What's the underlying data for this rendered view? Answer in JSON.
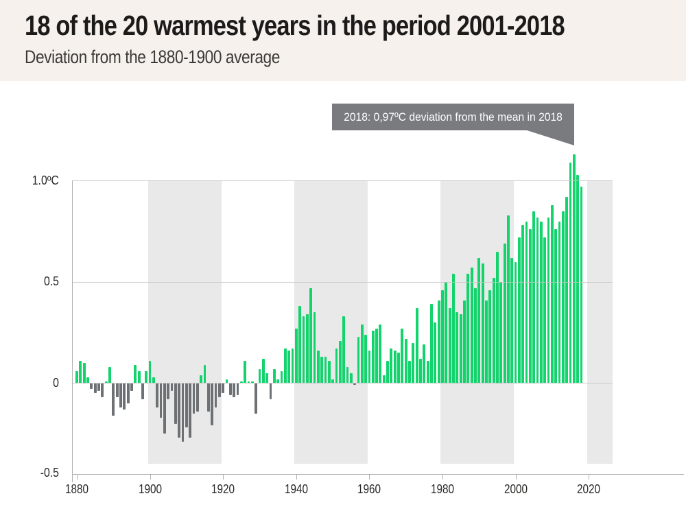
{
  "header": {
    "title": "18 of the 20 warmest years in the period 2001-2018",
    "subtitle": "Deviation from the 1880-1900 average"
  },
  "tooltip": {
    "text": "2018: 0,97ºC deviation from the mean in 2018"
  },
  "chart_data": {
    "type": "bar",
    "title": "18 of the 20 warmest years in the period 2001-2018",
    "subtitle": "Deviation from the 1880-1900 average",
    "unit": "°C",
    "x_start_year": 1880,
    "x_end_year": 2018,
    "values": [
      0.06,
      0.11,
      0.1,
      0.03,
      -0.03,
      -0.05,
      -0.04,
      -0.07,
      0.01,
      0.08,
      -0.16,
      -0.07,
      -0.12,
      -0.13,
      -0.1,
      -0.04,
      0.09,
      0.06,
      -0.08,
      0.06,
      0.11,
      0.03,
      -0.12,
      -0.17,
      -0.25,
      -0.08,
      -0.04,
      -0.2,
      -0.27,
      -0.29,
      -0.22,
      -0.27,
      -0.15,
      -0.14,
      0.04,
      0.09,
      -0.14,
      -0.21,
      -0.12,
      -0.07,
      -0.05,
      0.02,
      -0.06,
      -0.07,
      -0.06,
      0.01,
      0.11,
      0.01,
      0.01,
      -0.15,
      0.07,
      0.12,
      0.05,
      -0.08,
      0.07,
      0.02,
      0.06,
      0.17,
      0.16,
      0.17,
      0.27,
      0.38,
      0.33,
      0.34,
      0.47,
      0.35,
      0.16,
      0.13,
      0.13,
      0.11,
      0.02,
      0.17,
      0.21,
      0.33,
      0.08,
      0.05,
      -0.01,
      0.23,
      0.29,
      0.24,
      0.16,
      0.26,
      0.27,
      0.29,
      0.04,
      0.11,
      0.17,
      0.16,
      0.15,
      0.27,
      0.22,
      0.11,
      0.2,
      0.37,
      0.12,
      0.19,
      0.11,
      0.39,
      0.3,
      0.41,
      0.46,
      0.5,
      0.37,
      0.54,
      0.35,
      0.34,
      0.41,
      0.54,
      0.57,
      0.47,
      0.62,
      0.59,
      0.41,
      0.46,
      0.52,
      0.65,
      0.5,
      0.69,
      0.83,
      0.62,
      0.6,
      0.72,
      0.78,
      0.8,
      0.76,
      0.85,
      0.82,
      0.8,
      0.72,
      0.82,
      0.88,
      0.76,
      0.8,
      0.85,
      0.92,
      1.09,
      1.13,
      1.03,
      0.97
    ],
    "highlight": {
      "year": 2018,
      "value": 0.97,
      "label": "2018: 0,97ºC deviation from the mean in 2018"
    },
    "x_ticks": [
      1880,
      1900,
      1920,
      1940,
      1960,
      1980,
      2000,
      2020
    ],
    "y_ticks": [
      {
        "label": "1.0ºC",
        "value": 1.0
      },
      {
        "label": "0.5",
        "value": 0.5
      },
      {
        "label": "0",
        "value": 0
      },
      {
        "label": "-0.5",
        "value": -0.5
      }
    ],
    "gridline_values": [
      1.0,
      0.5,
      0
    ],
    "ylim": [
      -0.45,
      1.16
    ],
    "grid": true,
    "legend": "none",
    "shaded_decade_bands": [
      [
        1900,
        1920
      ],
      [
        1940,
        1960
      ],
      [
        1980,
        2000
      ],
      [
        2020,
        2027
      ]
    ],
    "colors": {
      "positive_bar": "#13d36d",
      "negative_bar": "#6e7174",
      "band": "#e9e9e9",
      "header_background": "#f6f1ed",
      "plot_background": "#ffffff",
      "tooltip_background": "#797b7e",
      "tooltip_text": "#ffffff",
      "title_text": "#1c1b1a",
      "subtitle_text": "#3c3a38"
    }
  }
}
